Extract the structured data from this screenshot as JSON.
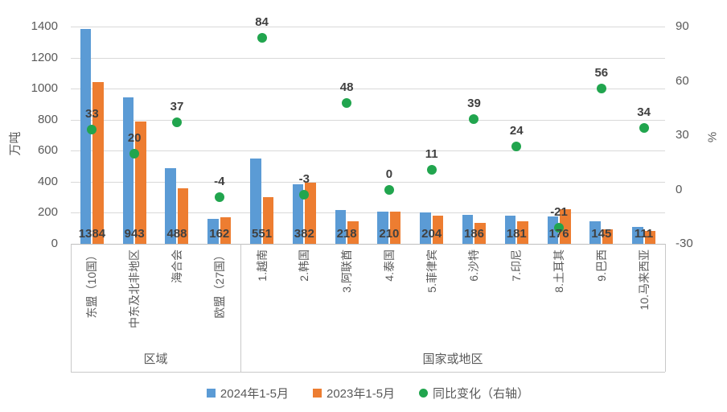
{
  "chart_data": {
    "type": "bar",
    "subtype": "grouped-bars-with-scatter-overlay-on-right-axis",
    "title": "",
    "categories": [
      "东盟（10国）",
      "中东及北非地区",
      "海合会",
      "欧盟（27国）",
      "1.越南",
      "2.韩国",
      "3.阿联酋",
      "4.泰国",
      "5.菲律宾",
      "6.沙特",
      "7.印尼",
      "8.土耳其",
      "9.巴西",
      "10.马来西亚"
    ],
    "groups": [
      {
        "label": "区域",
        "count": 4
      },
      {
        "label": "国家或地区",
        "count": 10
      }
    ],
    "series": [
      {
        "name": "2024年1-5月",
        "type": "bar",
        "axis": "left",
        "color": "#5B9BD5",
        "values": [
          1384,
          943,
          488,
          162,
          551,
          382,
          218,
          210,
          204,
          186,
          181,
          176,
          145,
          111
        ],
        "data_labels": true
      },
      {
        "name": "2023年1-5月",
        "type": "bar",
        "axis": "left",
        "color": "#ED7D31",
        "values": [
          1041,
          786,
          356,
          169,
          300,
          394,
          147,
          210,
          184,
          134,
          146,
          223,
          93,
          83
        ],
        "data_labels": false
      },
      {
        "name": "同比变化（右轴）",
        "type": "scatter",
        "axis": "right",
        "color": "#21A54E",
        "values": [
          33,
          20,
          37,
          -4,
          84,
          -3,
          48,
          0,
          11,
          39,
          24,
          -21,
          56,
          34
        ],
        "data_labels": true
      }
    ],
    "left_axis": {
      "title": "万吨",
      "min": 0,
      "max": 1400,
      "step": 200,
      "ticks": [
        0,
        200,
        400,
        600,
        800,
        1000,
        1200,
        1400
      ]
    },
    "right_axis": {
      "title": "%",
      "min": -30,
      "max": 90,
      "step": 30,
      "ticks": [
        -30,
        0,
        30,
        60,
        90
      ]
    },
    "legend": {
      "position": "bottom",
      "items": [
        "2024年1-5月",
        "2023年1-5月",
        "同比变化（右轴）"
      ]
    },
    "style": {
      "background": "#FFFFFF",
      "gridline_color": "#D9D9D9",
      "axis_line_color": "#BFBFBF",
      "tick_text_color": "#595959",
      "data_label_color": "#404040",
      "grid": "horizontal-only"
    }
  }
}
